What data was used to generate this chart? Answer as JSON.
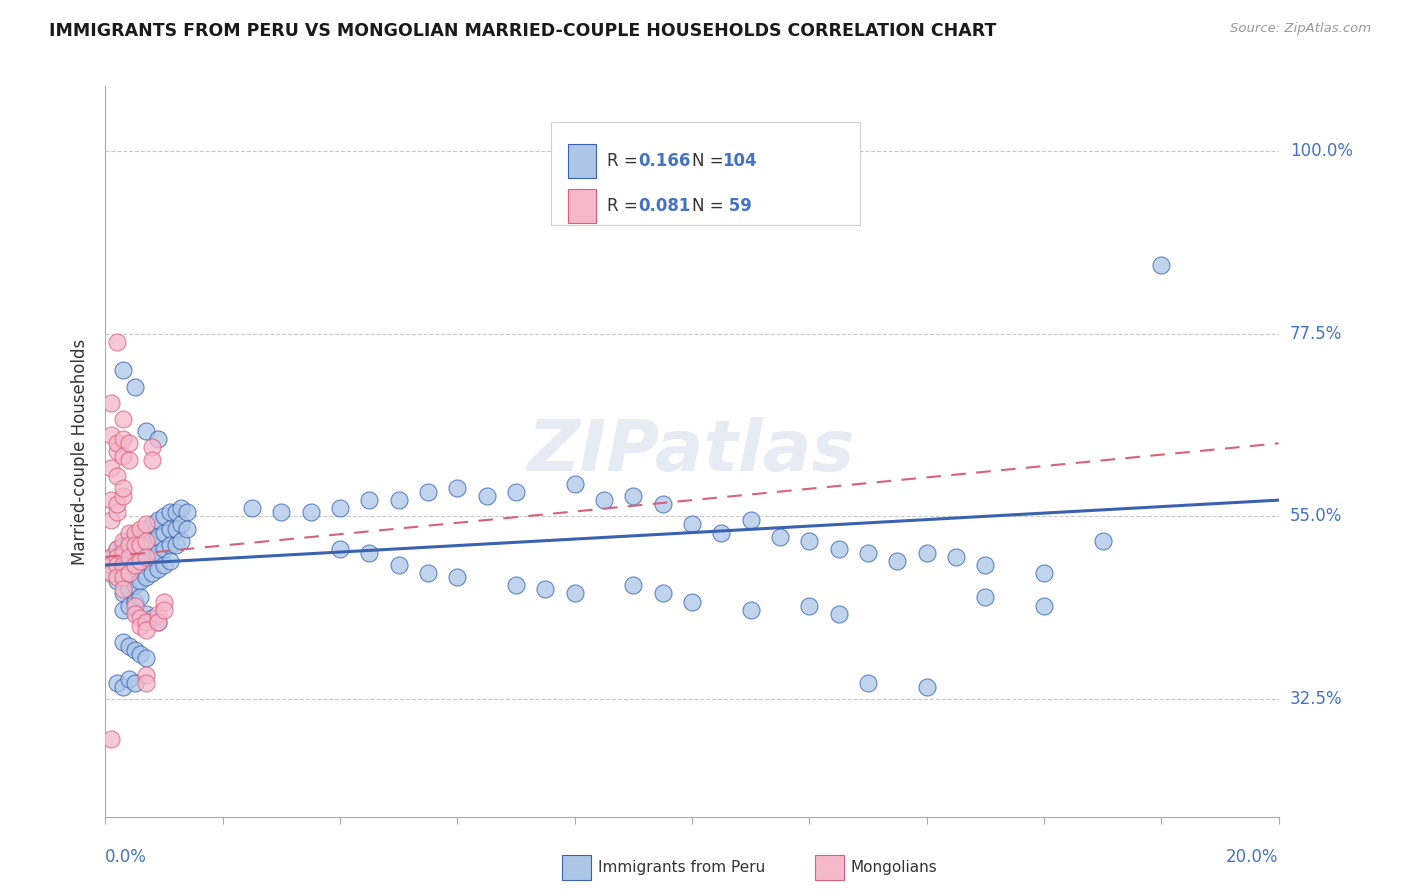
{
  "title": "IMMIGRANTS FROM PERU VS MONGOLIAN MARRIED-COUPLE HOUSEHOLDS CORRELATION CHART",
  "source": "Source: ZipAtlas.com",
  "ylabel": "Married-couple Households",
  "ytick_labels": [
    "32.5%",
    "55.0%",
    "77.5%",
    "100.0%"
  ],
  "ytick_values": [
    0.325,
    0.55,
    0.775,
    1.0
  ],
  "xlim": [
    0.0,
    0.2
  ],
  "ylim": [
    0.18,
    1.08
  ],
  "blue_color": "#adc6e8",
  "pink_color": "#f5b8cb",
  "trend_blue": "#3a62b0",
  "trend_pink": "#d9607a",
  "title_color": "#1a1a1a",
  "axis_label_color": "#4472c4",
  "blue_trend_y0": 0.49,
  "blue_trend_y1": 0.57,
  "pink_trend_y0": 0.5,
  "pink_trend_y1": 0.64,
  "blue_scatter": [
    [
      0.001,
      0.5
    ],
    [
      0.001,
      0.48
    ],
    [
      0.002,
      0.51
    ],
    [
      0.002,
      0.49
    ],
    [
      0.002,
      0.47
    ],
    [
      0.003,
      0.515
    ],
    [
      0.003,
      0.495
    ],
    [
      0.003,
      0.475
    ],
    [
      0.003,
      0.455
    ],
    [
      0.004,
      0.52
    ],
    [
      0.004,
      0.5
    ],
    [
      0.004,
      0.48
    ],
    [
      0.004,
      0.46
    ],
    [
      0.005,
      0.525
    ],
    [
      0.005,
      0.505
    ],
    [
      0.005,
      0.485
    ],
    [
      0.005,
      0.465
    ],
    [
      0.006,
      0.53
    ],
    [
      0.006,
      0.51
    ],
    [
      0.006,
      0.49
    ],
    [
      0.006,
      0.47
    ],
    [
      0.007,
      0.535
    ],
    [
      0.007,
      0.515
    ],
    [
      0.007,
      0.495
    ],
    [
      0.007,
      0.475
    ],
    [
      0.008,
      0.54
    ],
    [
      0.008,
      0.52
    ],
    [
      0.008,
      0.5
    ],
    [
      0.008,
      0.48
    ],
    [
      0.009,
      0.545
    ],
    [
      0.009,
      0.525
    ],
    [
      0.009,
      0.505
    ],
    [
      0.009,
      0.485
    ],
    [
      0.01,
      0.55
    ],
    [
      0.01,
      0.53
    ],
    [
      0.01,
      0.51
    ],
    [
      0.01,
      0.49
    ],
    [
      0.011,
      0.555
    ],
    [
      0.011,
      0.535
    ],
    [
      0.011,
      0.515
    ],
    [
      0.011,
      0.495
    ],
    [
      0.012,
      0.555
    ],
    [
      0.012,
      0.535
    ],
    [
      0.012,
      0.515
    ],
    [
      0.013,
      0.56
    ],
    [
      0.013,
      0.54
    ],
    [
      0.013,
      0.52
    ],
    [
      0.014,
      0.555
    ],
    [
      0.014,
      0.535
    ],
    [
      0.003,
      0.435
    ],
    [
      0.004,
      0.44
    ],
    [
      0.005,
      0.445
    ],
    [
      0.006,
      0.45
    ],
    [
      0.007,
      0.43
    ],
    [
      0.008,
      0.425
    ],
    [
      0.009,
      0.42
    ],
    [
      0.003,
      0.395
    ],
    [
      0.004,
      0.39
    ],
    [
      0.005,
      0.385
    ],
    [
      0.006,
      0.38
    ],
    [
      0.007,
      0.375
    ],
    [
      0.002,
      0.345
    ],
    [
      0.003,
      0.34
    ],
    [
      0.004,
      0.35
    ],
    [
      0.005,
      0.345
    ],
    [
      0.003,
      0.73
    ],
    [
      0.005,
      0.71
    ],
    [
      0.007,
      0.655
    ],
    [
      0.009,
      0.645
    ],
    [
      0.025,
      0.56
    ],
    [
      0.03,
      0.555
    ],
    [
      0.035,
      0.555
    ],
    [
      0.04,
      0.56
    ],
    [
      0.045,
      0.57
    ],
    [
      0.05,
      0.57
    ],
    [
      0.055,
      0.58
    ],
    [
      0.06,
      0.585
    ],
    [
      0.065,
      0.575
    ],
    [
      0.07,
      0.58
    ],
    [
      0.08,
      0.59
    ],
    [
      0.085,
      0.57
    ],
    [
      0.09,
      0.575
    ],
    [
      0.095,
      0.565
    ],
    [
      0.1,
      0.54
    ],
    [
      0.105,
      0.53
    ],
    [
      0.11,
      0.545
    ],
    [
      0.115,
      0.525
    ],
    [
      0.12,
      0.52
    ],
    [
      0.125,
      0.51
    ],
    [
      0.13,
      0.505
    ],
    [
      0.135,
      0.495
    ],
    [
      0.14,
      0.505
    ],
    [
      0.145,
      0.5
    ],
    [
      0.15,
      0.49
    ],
    [
      0.16,
      0.48
    ],
    [
      0.04,
      0.51
    ],
    [
      0.045,
      0.505
    ],
    [
      0.05,
      0.49
    ],
    [
      0.055,
      0.48
    ],
    [
      0.06,
      0.475
    ],
    [
      0.07,
      0.465
    ],
    [
      0.075,
      0.46
    ],
    [
      0.08,
      0.455
    ],
    [
      0.09,
      0.465
    ],
    [
      0.095,
      0.455
    ],
    [
      0.1,
      0.445
    ],
    [
      0.11,
      0.435
    ],
    [
      0.12,
      0.44
    ],
    [
      0.125,
      0.43
    ],
    [
      0.13,
      0.345
    ],
    [
      0.14,
      0.34
    ],
    [
      0.15,
      0.45
    ],
    [
      0.16,
      0.44
    ],
    [
      0.17,
      0.52
    ],
    [
      0.18,
      0.86
    ]
  ],
  "pink_scatter": [
    [
      0.001,
      0.5
    ],
    [
      0.001,
      0.49
    ],
    [
      0.001,
      0.48
    ],
    [
      0.001,
      0.545
    ],
    [
      0.001,
      0.57
    ],
    [
      0.001,
      0.61
    ],
    [
      0.001,
      0.65
    ],
    [
      0.001,
      0.69
    ],
    [
      0.002,
      0.51
    ],
    [
      0.002,
      0.5
    ],
    [
      0.002,
      0.49
    ],
    [
      0.002,
      0.475
    ],
    [
      0.002,
      0.555
    ],
    [
      0.002,
      0.565
    ],
    [
      0.002,
      0.6
    ],
    [
      0.002,
      0.63
    ],
    [
      0.002,
      0.64
    ],
    [
      0.002,
      0.765
    ],
    [
      0.003,
      0.52
    ],
    [
      0.003,
      0.505
    ],
    [
      0.003,
      0.49
    ],
    [
      0.003,
      0.475
    ],
    [
      0.003,
      0.46
    ],
    [
      0.003,
      0.575
    ],
    [
      0.003,
      0.585
    ],
    [
      0.003,
      0.625
    ],
    [
      0.003,
      0.645
    ],
    [
      0.003,
      0.67
    ],
    [
      0.004,
      0.53
    ],
    [
      0.004,
      0.515
    ],
    [
      0.004,
      0.5
    ],
    [
      0.004,
      0.48
    ],
    [
      0.004,
      0.62
    ],
    [
      0.004,
      0.64
    ],
    [
      0.005,
      0.53
    ],
    [
      0.005,
      0.515
    ],
    [
      0.005,
      0.49
    ],
    [
      0.005,
      0.44
    ],
    [
      0.005,
      0.43
    ],
    [
      0.006,
      0.535
    ],
    [
      0.006,
      0.515
    ],
    [
      0.006,
      0.495
    ],
    [
      0.006,
      0.425
    ],
    [
      0.006,
      0.415
    ],
    [
      0.007,
      0.54
    ],
    [
      0.007,
      0.52
    ],
    [
      0.007,
      0.5
    ],
    [
      0.007,
      0.42
    ],
    [
      0.007,
      0.41
    ],
    [
      0.008,
      0.635
    ],
    [
      0.008,
      0.62
    ],
    [
      0.009,
      0.43
    ],
    [
      0.009,
      0.42
    ],
    [
      0.01,
      0.445
    ],
    [
      0.01,
      0.435
    ],
    [
      0.001,
      0.275
    ],
    [
      0.007,
      0.355
    ],
    [
      0.007,
      0.345
    ]
  ]
}
